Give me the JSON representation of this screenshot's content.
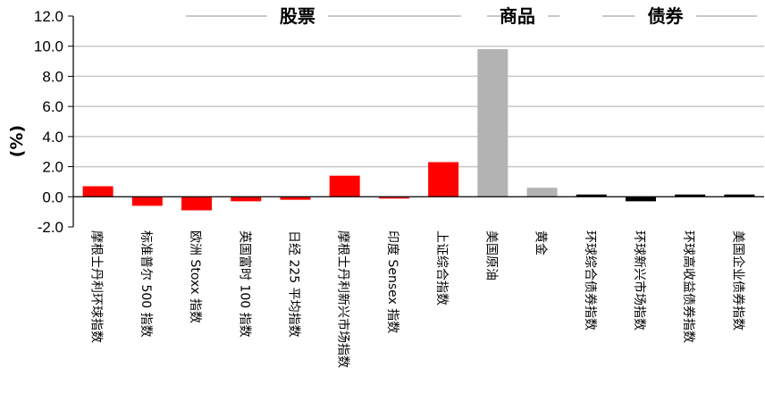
{
  "chart_data": {
    "type": "bar",
    "ylabel": "(%)",
    "ylim": [
      -2.0,
      12.0
    ],
    "yticks": [
      "12.0",
      "10.0",
      "8.0",
      "6.0",
      "4.0",
      "2.0",
      "0.0",
      "-2.0"
    ],
    "ytick_values": [
      12,
      10,
      8,
      6,
      4,
      2,
      0,
      -2
    ],
    "grid": true,
    "groups": [
      {
        "label": "股票",
        "first": 0,
        "last": 7
      },
      {
        "label": "商品",
        "first": 8,
        "last": 9
      },
      {
        "label": "债券",
        "first": 10,
        "last": 13
      }
    ],
    "categories": [
      "摩根士丹利环球指数",
      "标准普尔 500 指数",
      "欧洲 Stoxx 指数",
      "英国富时 100 指数",
      "日经 225 平均指数",
      "摩根士丹利新兴市场指数",
      "印度 Sensex 指数",
      "上证综合指数",
      "美国原油",
      "黄金",
      "环球综合债券指数",
      "环球新兴市场指数",
      "环球高收益债券指数",
      "美国企业债券指数"
    ],
    "values": [
      0.7,
      -0.6,
      -0.9,
      -0.3,
      -0.2,
      1.4,
      -0.05,
      2.3,
      9.8,
      0.6,
      0.15,
      -0.3,
      0.15,
      0.15
    ],
    "colors": {
      "equity": "#ff0000",
      "commodity": "#b3b3b3",
      "bond": "#000000",
      "grid": "#c8c8c8",
      "axis": "#000000"
    },
    "bar_color_keys": [
      "equity",
      "equity",
      "equity",
      "equity",
      "equity",
      "equity",
      "equity",
      "equity",
      "commodity",
      "commodity",
      "bond",
      "bond",
      "bond",
      "bond"
    ]
  }
}
